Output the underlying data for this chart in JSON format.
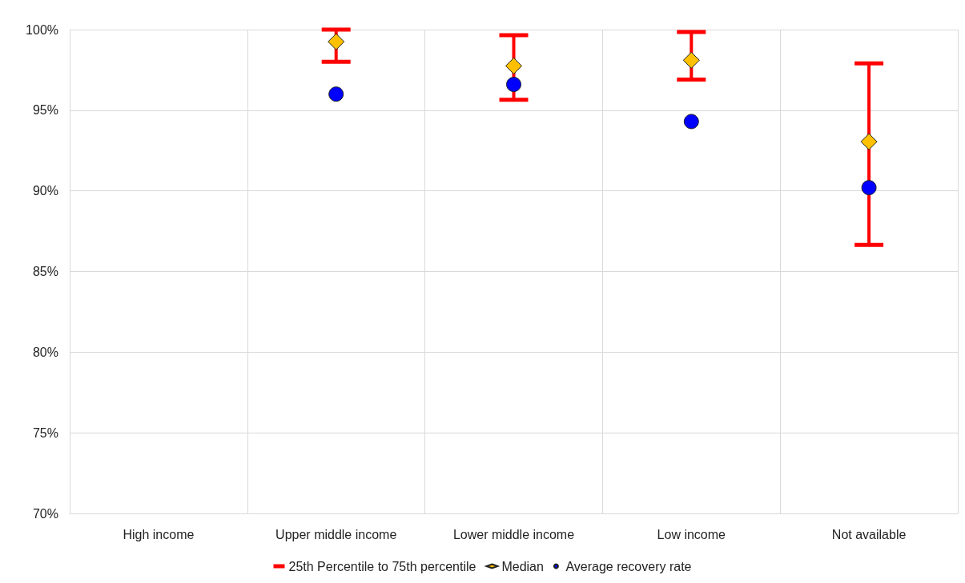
{
  "chart_data": {
    "type": "scatter",
    "categories": [
      "High income",
      "Upper middle income",
      "Lower middle income",
      "Low income",
      "Not available"
    ],
    "series": [
      {
        "name": "Median",
        "marker": "diamond",
        "color": "#ffc000",
        "values": [
          null,
          99.25,
          97.75,
          98.1,
          93.05
        ]
      },
      {
        "name": "Average recovery rate",
        "marker": "circle",
        "color": "#0000ff",
        "values": [
          null,
          96.0,
          96.6,
          94.3,
          90.2
        ],
        "errors": [
          null,
          [
            98.0,
            100
          ],
          [
            95.65,
            99.65
          ],
          [
            96.9,
            99.85
          ],
          [
            86.65,
            97.9
          ]
        ]
      }
    ],
    "annotations": [
      "25th Percentile to 75th percentile"
    ],
    "ylim": [
      70,
      100
    ],
    "yticks": [
      {
        "value": 70,
        "label": "70%"
      },
      {
        "value": 75,
        "label": "75%"
      },
      {
        "value": 80,
        "label": "80%"
      },
      {
        "value": 85,
        "label": "85%"
      },
      {
        "value": 90,
        "label": "90%"
      },
      {
        "value": 95,
        "label": "95%"
      },
      {
        "value": 100,
        "label": "100%"
      }
    ],
    "grid": true,
    "legend": "bottom"
  }
}
